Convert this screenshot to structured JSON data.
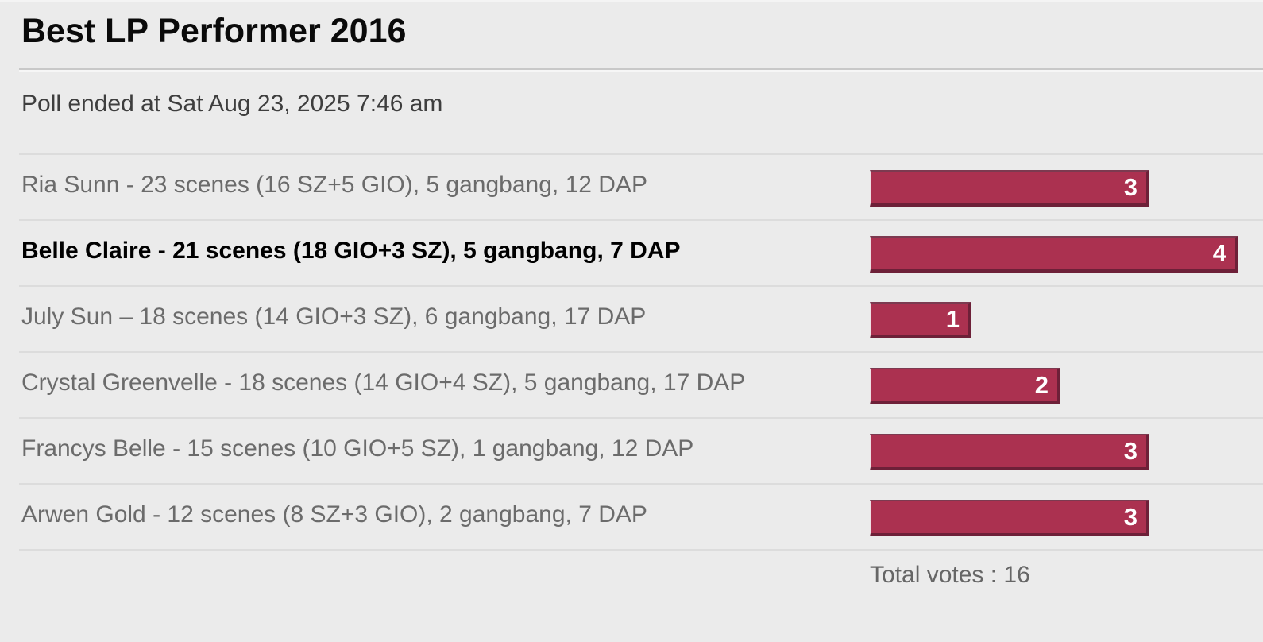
{
  "page": {
    "title": "Best LP Performer 2016",
    "poll_status": "Poll ended at Sat Aug 23, 2025 7:46 am",
    "total_votes_label": "Total votes : 16"
  },
  "poll": {
    "max_votes": 4,
    "total_votes": 16,
    "options": [
      {
        "label": "Ria Sunn - 23 scenes (16 SZ+5 GIO), 5 gangbang, 12 DAP",
        "votes": 3,
        "voted": false
      },
      {
        "label": "Belle Claire - 21 scenes (18 GIO+3 SZ), 5 gangbang, 7 DAP",
        "votes": 4,
        "voted": true
      },
      {
        "label": "July Sun – 18 scenes (14 GIO+3 SZ), 6 gangbang, 17 DAP",
        "votes": 1,
        "voted": false
      },
      {
        "label": "Crystal Greenvelle - 18 scenes (14 GIO+4 SZ), 5 gangbang, 17 DAP",
        "votes": 2,
        "voted": false
      },
      {
        "label": "Francys Belle - 15 scenes (10 GIO+5 SZ), 1 gangbang, 12 DAP",
        "votes": 3,
        "voted": false
      },
      {
        "label": "Arwen Gold - 12 scenes (8 SZ+3 GIO), 2 gangbang, 7 DAP",
        "votes": 3,
        "voted": false
      }
    ]
  },
  "colors": {
    "background": "#ebebeb",
    "bar_fill": "#ab3150",
    "bar_border_dark": "#6d2038",
    "bar_border_top": "#7c3a50",
    "option_text": "#6b6b6b",
    "voted_text": "#000000",
    "divider": "#dcdcdc",
    "title_divider": "#c8c8c8"
  },
  "chart_data": {
    "type": "bar",
    "orientation": "horizontal",
    "title": "Best LP Performer 2016",
    "categories": [
      "Ria Sunn - 23 scenes (16 SZ+5 GIO), 5 gangbang, 12 DAP",
      "Belle Claire - 21 scenes (18 GIO+3 SZ), 5 gangbang, 7 DAP",
      "July Sun – 18 scenes (14 GIO+3 SZ), 6 gangbang, 17 DAP",
      "Crystal Greenvelle - 18 scenes (14 GIO+4 SZ), 5 gangbang, 17 DAP",
      "Francys Belle - 15 scenes (10 GIO+5 SZ), 1 gangbang, 12 DAP",
      "Arwen Gold - 12 scenes (8 SZ+3 GIO), 2 gangbang, 7 DAP"
    ],
    "values": [
      3,
      4,
      1,
      2,
      3,
      3
    ],
    "xlabel": "",
    "ylabel": "",
    "xlim": [
      0,
      4
    ],
    "annotations": [
      "Total votes : 16"
    ],
    "legend": "none",
    "grid": false
  }
}
